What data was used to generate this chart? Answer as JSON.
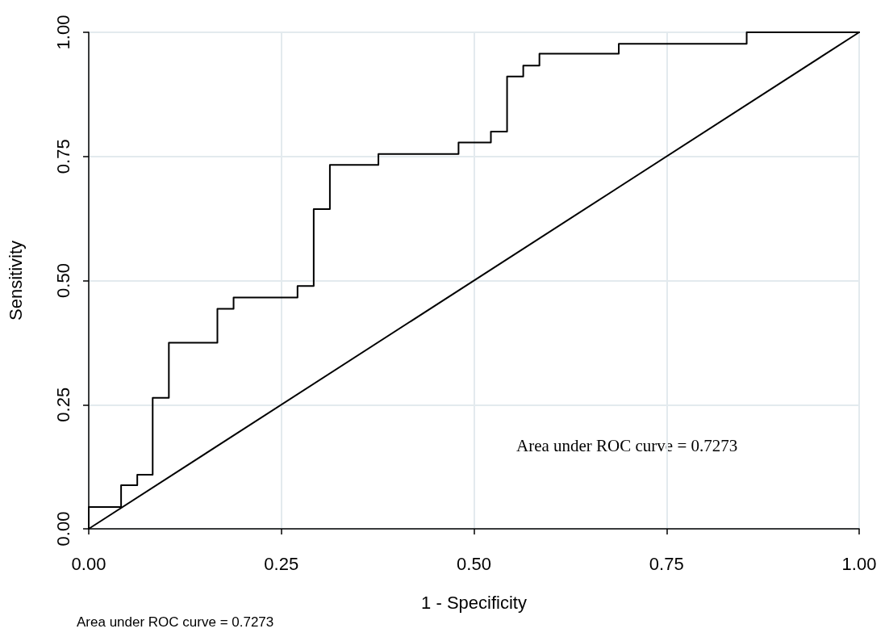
{
  "chart_data": {
    "type": "step",
    "xlabel": "1 - Specificity",
    "ylabel": "Sensitivity",
    "xlim": [
      0,
      1
    ],
    "ylim": [
      0,
      1
    ],
    "xticks": [
      {
        "value": 0,
        "label": "0.00"
      },
      {
        "value": 0.25,
        "label": "0.25"
      },
      {
        "value": 0.5,
        "label": "0.50"
      },
      {
        "value": 0.75,
        "label": "0.75"
      },
      {
        "value": 1,
        "label": "1.00"
      }
    ],
    "yticks": [
      {
        "value": 0,
        "label": "0.00"
      },
      {
        "value": 0.25,
        "label": "0.25"
      },
      {
        "value": 0.5,
        "label": "0.50"
      },
      {
        "value": 0.75,
        "label": "0.75"
      },
      {
        "value": 1,
        "label": "1.00"
      }
    ],
    "grid": true,
    "marker": "none",
    "line_style": "solid",
    "series": [
      {
        "color": "#000000",
        "x": [
          0,
          0,
          0.042,
          0.063,
          0.083,
          0.104,
          0.167,
          0.188,
          0.271,
          0.292,
          0.313,
          0.376,
          0.48,
          0.522,
          0.543,
          0.564,
          0.585,
          0.688,
          0.854,
          1
        ],
        "values": [
          0,
          0.044,
          0.088,
          0.109,
          0.264,
          0.375,
          0.443,
          0.466,
          0.489,
          0.644,
          0.733,
          0.755,
          0.778,
          0.8,
          0.911,
          0.933,
          0.957,
          0.977,
          1,
          1
        ]
      },
      {
        "type": "line",
        "color": "#000000",
        "x": [
          0,
          1
        ],
        "values": [
          0,
          1
        ]
      }
    ],
    "annotations": [
      "Area under ROC curve = 0.7273",
      "Area under ROC curve = 0.7273"
    ]
  }
}
